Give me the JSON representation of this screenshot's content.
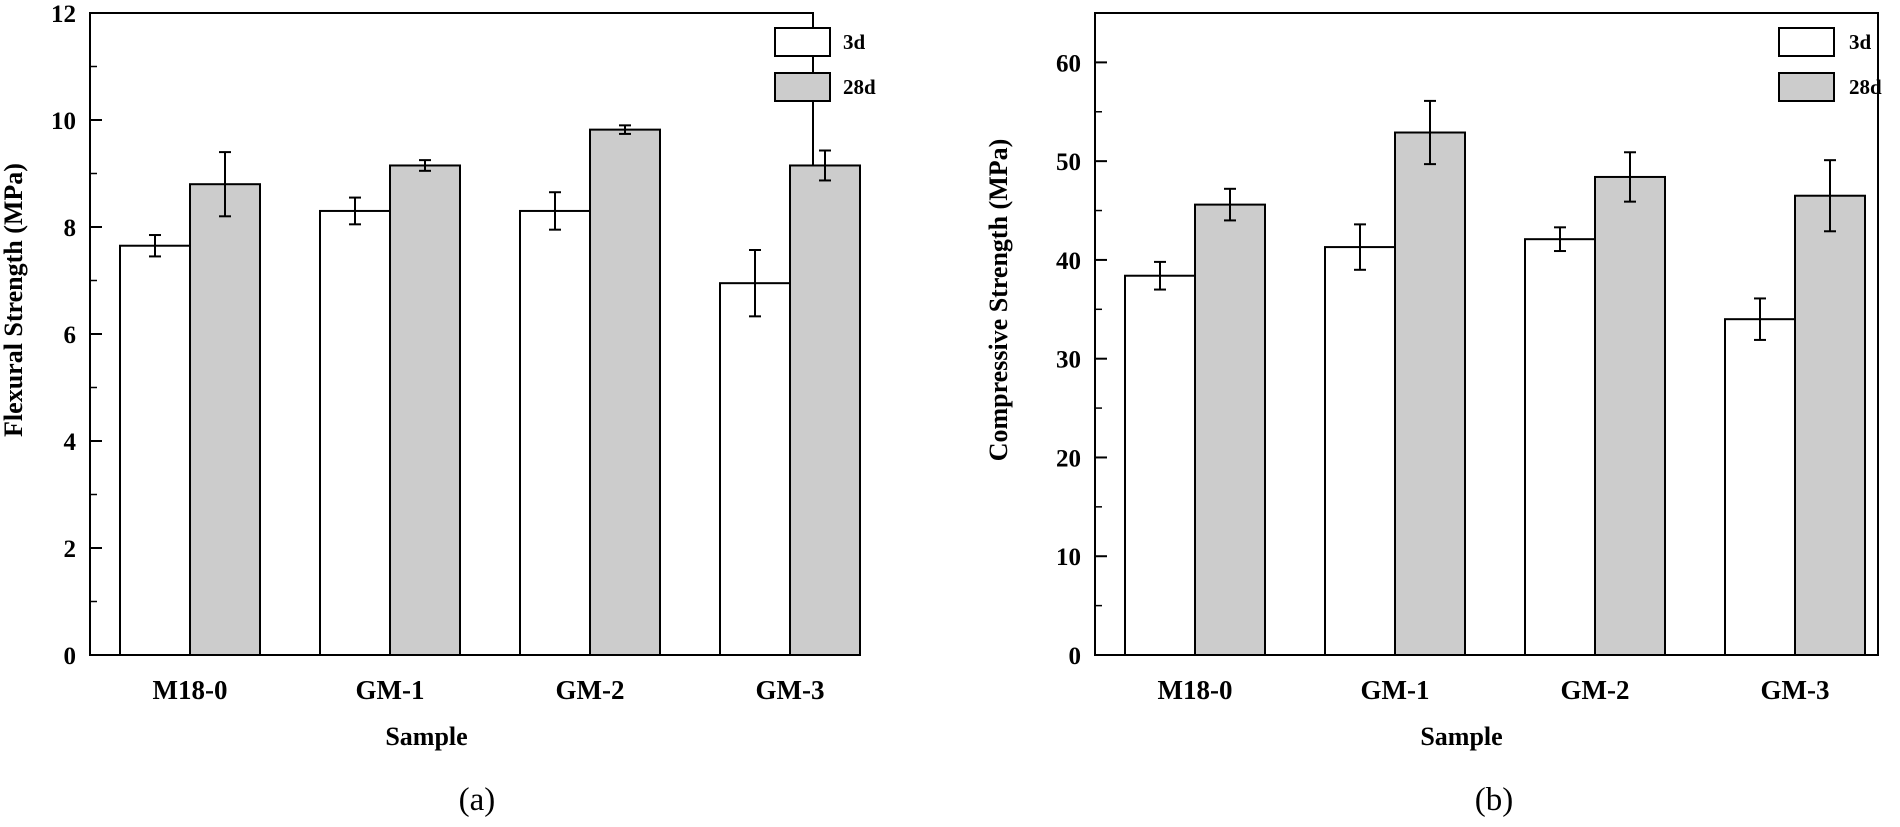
{
  "chart_data": [
    {
      "type": "bar",
      "panel_label": "(a)",
      "xlabel": "Sample",
      "ylabel": "Flexural Strength (MPa)",
      "ylim": [
        0,
        12
      ],
      "yticks": [
        "0",
        "2",
        "4",
        "6",
        "8",
        "10",
        "12"
      ],
      "categories": [
        "M18-0",
        "GM-1",
        "GM-2",
        "GM-3"
      ],
      "series": [
        {
          "name": "3d",
          "color": "#ffffff",
          "values": [
            7.65,
            8.3,
            8.3,
            6.95
          ],
          "errors": [
            0.2,
            0.25,
            0.35,
            0.62
          ]
        },
        {
          "name": "28d",
          "color": "#cccccc",
          "values": [
            8.8,
            9.15,
            9.82,
            9.15
          ],
          "errors": [
            0.6,
            0.1,
            0.08,
            0.28
          ]
        }
      ],
      "legend": "top-right"
    },
    {
      "type": "bar",
      "panel_label": "(b)",
      "xlabel": "Sample",
      "ylabel": "Compressive Strength (MPa)",
      "ylim": [
        0,
        65
      ],
      "yticks": [
        "0",
        "10",
        "20",
        "30",
        "40",
        "50",
        "60"
      ],
      "categories": [
        "M18-0",
        "GM-1",
        "GM-2",
        "GM-3"
      ],
      "series": [
        {
          "name": "3d",
          "color": "#ffffff",
          "values": [
            38.4,
            41.3,
            42.1,
            34.0
          ],
          "errors": [
            1.4,
            2.3,
            1.2,
            2.1
          ]
        },
        {
          "name": "28d",
          "color": "#cccccc",
          "values": [
            45.6,
            52.9,
            48.4,
            46.5
          ],
          "errors": [
            1.6,
            3.2,
            2.5,
            3.6
          ]
        }
      ],
      "legend": "top-right"
    }
  ]
}
